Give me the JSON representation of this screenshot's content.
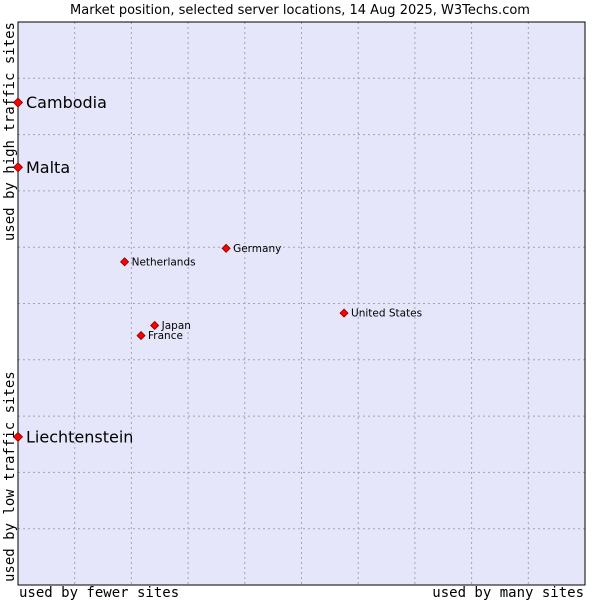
{
  "chart_data": {
    "type": "scatter",
    "title": "Market position, selected server locations, 14 Aug 2025, W3Techs.com",
    "xlabel_left": "used by fewer sites",
    "xlabel_right": "used by many sites",
    "ylabel_bottom": "used by low traffic sites",
    "ylabel_top": "used by high traffic sites",
    "xlim": [
      0,
      100
    ],
    "ylim": [
      0,
      100
    ],
    "grid": true,
    "colors": {
      "plot_bg": "#e6e6fa",
      "grid": "#a0a0c0",
      "border": "#000000",
      "marker": "#ff0000",
      "marker_edge": "#800000",
      "text": "#000000"
    },
    "points": [
      {
        "label": "Cambodia",
        "x": 0,
        "y": 85.7,
        "size": "large"
      },
      {
        "label": "Malta",
        "x": 0,
        "y": 74.2,
        "size": "large"
      },
      {
        "label": "Liechtenstein",
        "x": 0,
        "y": 26.3,
        "size": "large"
      },
      {
        "label": "Germany",
        "x": 36.7,
        "y": 59.8,
        "size": "small"
      },
      {
        "label": "Netherlands",
        "x": 18.8,
        "y": 57.4,
        "size": "small"
      },
      {
        "label": "United States",
        "x": 57.5,
        "y": 48.3,
        "size": "small"
      },
      {
        "label": "Japan",
        "x": 24.1,
        "y": 46.1,
        "size": "small"
      },
      {
        "label": "France",
        "x": 21.7,
        "y": 44.3,
        "size": "small"
      }
    ]
  }
}
